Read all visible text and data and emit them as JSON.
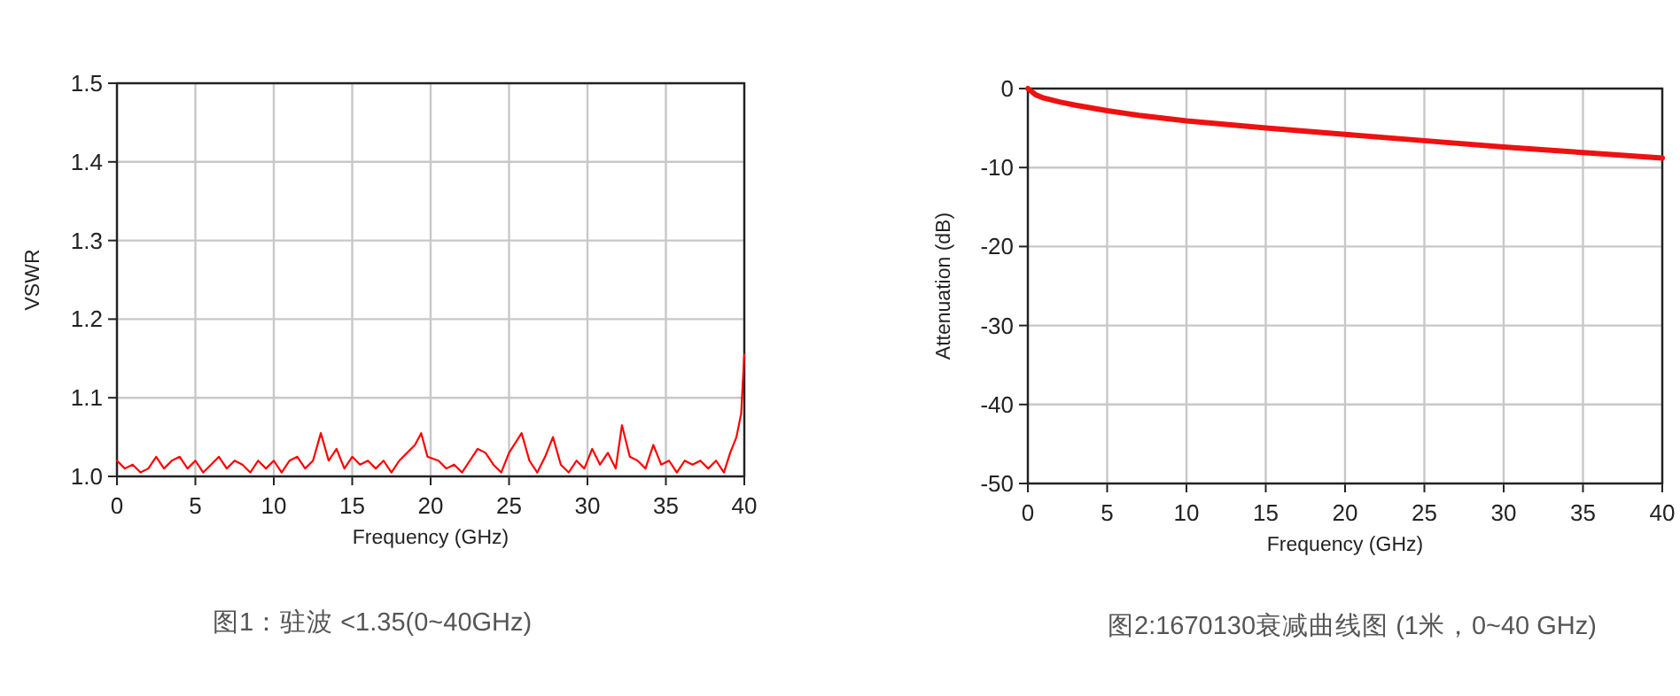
{
  "chart_data": [
    {
      "type": "line",
      "xlabel": "Frequency (GHz)",
      "ylabel": "VSWR",
      "xlim": [
        0,
        40
      ],
      "ylim": [
        1.0,
        1.5
      ],
      "xticks": [
        0,
        5,
        10,
        15,
        20,
        25,
        30,
        35,
        40
      ],
      "yticks": [
        {
          "value": 1.0,
          "label": "1.0"
        },
        1.1,
        1.2,
        1.3,
        1.4,
        1.5
      ],
      "grid": true,
      "line_style": "solid",
      "annotations": [
        "图1：驻波 <1.35(0~40GHz)"
      ],
      "series": [
        {
          "color": "#ff0000",
          "x": [
            0,
            0.5,
            1,
            1.5,
            2,
            2.5,
            3,
            3.5,
            4,
            4.5,
            5,
            5.5,
            6,
            6.5,
            7,
            7.5,
            8,
            8.5,
            9,
            9.5,
            10,
            10.5,
            11,
            11.5,
            12,
            12.5,
            13,
            13.5,
            14,
            14.5,
            15,
            15.5,
            16,
            16.5,
            17,
            17.5,
            18,
            18.5,
            19,
            19.4,
            19.8,
            20.5,
            21,
            21.5,
            22,
            22.5,
            23,
            23.5,
            24,
            24.5,
            25,
            25.8,
            26.3,
            26.8,
            27.3,
            27.8,
            28.3,
            28.8,
            29.3,
            29.8,
            30.3,
            30.8,
            31.3,
            31.8,
            32.2,
            32.7,
            33.2,
            33.7,
            34.2,
            34.7,
            35.2,
            35.7,
            36.2,
            36.7,
            37.2,
            37.7,
            38.2,
            38.7,
            39.1,
            39.5,
            39.8,
            40
          ],
          "values": [
            1.02,
            1.01,
            1.015,
            1.005,
            1.01,
            1.025,
            1.01,
            1.02,
            1.025,
            1.01,
            1.02,
            1.005,
            1.015,
            1.025,
            1.01,
            1.02,
            1.015,
            1.005,
            1.02,
            1.01,
            1.02,
            1.005,
            1.02,
            1.025,
            1.01,
            1.02,
            1.055,
            1.02,
            1.035,
            1.01,
            1.025,
            1.015,
            1.02,
            1.01,
            1.02,
            1.005,
            1.02,
            1.03,
            1.04,
            1.055,
            1.025,
            1.02,
            1.01,
            1.015,
            1.005,
            1.02,
            1.035,
            1.03,
            1.015,
            1.005,
            1.03,
            1.055,
            1.02,
            1.005,
            1.025,
            1.05,
            1.015,
            1.005,
            1.02,
            1.01,
            1.035,
            1.015,
            1.03,
            1.01,
            1.065,
            1.025,
            1.02,
            1.01,
            1.04,
            1.015,
            1.02,
            1.005,
            1.02,
            1.015,
            1.02,
            1.01,
            1.02,
            1.005,
            1.03,
            1.05,
            1.08,
            1.155
          ]
        }
      ]
    },
    {
      "type": "line",
      "xlabel": "Frequency (GHz)",
      "ylabel": "Attenuation (dB)",
      "xlim": [
        0,
        40
      ],
      "ylim": [
        -50,
        0
      ],
      "xticks": [
        0,
        5,
        10,
        15,
        20,
        25,
        30,
        35,
        40
      ],
      "yticks": [
        -50,
        -40,
        -30,
        -20,
        -10,
        0
      ],
      "grid": true,
      "line_style": "solid",
      "annotations": [
        "图2:1670130衰减曲线图 (1米，0~40 GHz)"
      ],
      "series": [
        {
          "color": "#ee1111",
          "x": [
            0,
            0.5,
            1,
            2,
            3,
            5,
            7,
            10,
            15,
            20,
            25,
            30,
            35,
            40
          ],
          "values": [
            0,
            -0.8,
            -1.2,
            -1.7,
            -2.1,
            -2.8,
            -3.4,
            -4.1,
            -5.0,
            -5.8,
            -6.6,
            -7.4,
            -8.1,
            -8.8
          ]
        }
      ]
    }
  ]
}
